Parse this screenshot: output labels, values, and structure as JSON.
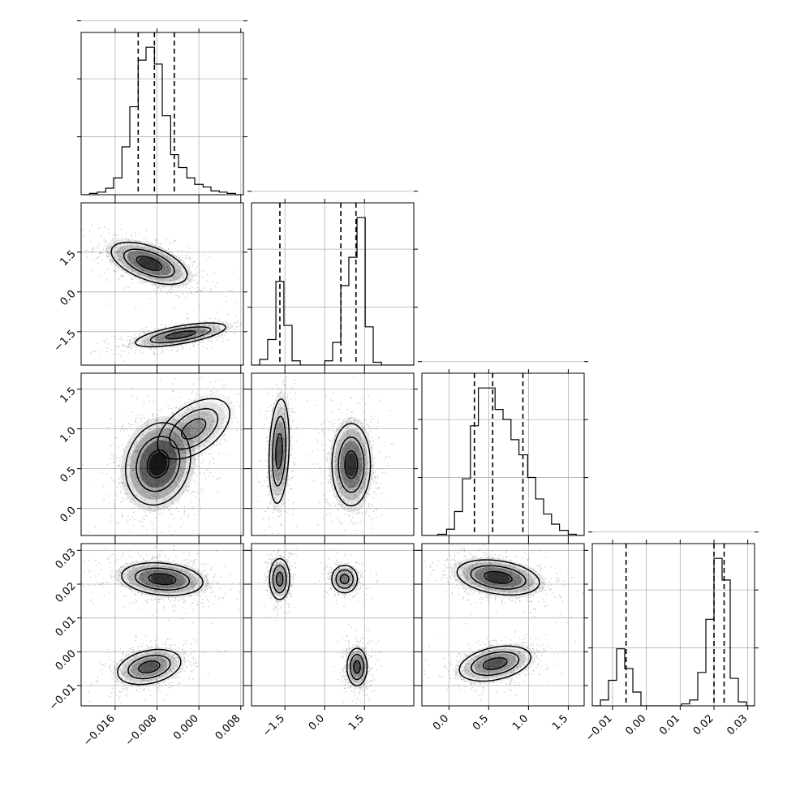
{
  "chart_data": {
    "type": "corner",
    "dimension_count": 4,
    "grid": true,
    "x_axis": [
      {
        "range": [
          -0.0225,
          0.0085
        ],
        "ticks": [
          -0.016,
          -0.008,
          0.0,
          0.008
        ],
        "labels": [
          "−0.016",
          "−0.008",
          "0.000",
          "0.008"
        ]
      },
      {
        "range": [
          -2.76,
          3.36
        ],
        "ticks": [
          -1.5,
          0.0,
          1.5
        ],
        "labels": [
          "−1.5",
          "0.0",
          "1.5"
        ]
      },
      {
        "range": [
          -0.34,
          1.7
        ],
        "ticks": [
          0.0,
          0.5,
          1.0,
          1.5
        ],
        "labels": [
          "0.0",
          "0.5",
          "1.0",
          "1.5"
        ]
      },
      {
        "range": [
          -0.016,
          0.032
        ],
        "ticks": [
          -0.01,
          0.0,
          0.01,
          0.02,
          0.03
        ],
        "labels": [
          "−0.01",
          "0.00",
          "0.01",
          "0.02",
          "0.03"
        ]
      }
    ],
    "y_axis": [
      null,
      {
        "range": [
          -2.76,
          3.36
        ],
        "ticks": [
          -1.5,
          0.0,
          1.5
        ],
        "labels": [
          "−1.5",
          "0.0",
          "1.5"
        ]
      },
      {
        "range": [
          -0.34,
          1.7
        ],
        "ticks": [
          0.0,
          0.5,
          1.0,
          1.5
        ],
        "labels": [
          "0.0",
          "0.5",
          "1.0",
          "1.5"
        ]
      },
      {
        "range": [
          -0.016,
          0.032
        ],
        "ticks": [
          -0.01,
          0.0,
          0.01,
          0.02,
          0.03
        ],
        "labels": [
          "−0.01",
          "0.00",
          "0.01",
          "0.02",
          "0.03"
        ]
      }
    ],
    "histograms": [
      {
        "bin_edges": [
          -0.0225,
          -0.0209,
          -0.0194,
          -0.0178,
          -0.0163,
          -0.0147,
          -0.0132,
          -0.0116,
          -0.0101,
          -0.0085,
          -0.007,
          -0.0054,
          -0.0039,
          -0.0023,
          -0.0008,
          0.0008,
          0.0023,
          0.0039,
          0.0054,
          0.007,
          0.0085
        ],
        "counts": [
          0,
          1,
          2,
          5,
          13,
          37,
          68,
          104,
          114,
          101,
          61,
          31,
          21,
          13,
          8,
          6,
          3,
          2,
          1,
          0
        ],
        "quantile_lines": [
          -0.0116,
          -0.0085,
          -0.0047
        ]
      },
      {
        "bin_edges": [
          -2.76,
          -2.45,
          -2.15,
          -1.84,
          -1.54,
          -1.23,
          -0.92,
          -0.62,
          -0.31,
          0.0,
          0.3,
          0.61,
          0.91,
          1.22,
          1.53,
          1.83,
          2.14,
          2.44,
          2.75,
          3.05,
          3.36
        ],
        "counts": [
          0,
          4,
          18,
          59,
          28,
          3,
          0,
          0,
          0,
          3,
          16,
          56,
          76,
          104,
          27,
          2,
          0,
          0,
          0,
          0
        ],
        "quantile_lines": [
          -1.69,
          0.61,
          1.18
        ]
      },
      {
        "bin_edges": [
          -0.34,
          -0.24,
          -0.14,
          -0.03,
          0.07,
          0.17,
          0.27,
          0.37,
          0.48,
          0.58,
          0.68,
          0.78,
          0.88,
          0.99,
          1.09,
          1.19,
          1.29,
          1.39,
          1.5,
          1.6,
          1.7
        ],
        "counts": [
          0,
          0,
          1,
          5,
          19,
          45,
          87,
          117,
          117,
          100,
          92,
          76,
          64,
          46,
          29,
          17,
          9,
          4,
          1,
          0
        ],
        "quantile_lines": [
          0.32,
          0.55,
          0.93
        ]
      },
      {
        "bin_edges": [
          -0.016,
          -0.0136,
          -0.0112,
          -0.0088,
          -0.0064,
          -0.004,
          -0.0016,
          0.0008,
          0.0032,
          0.0056,
          0.008,
          0.0104,
          0.0128,
          0.0152,
          0.0176,
          0.02,
          0.0224,
          0.0248,
          0.0272,
          0.0296,
          0.032
        ],
        "counts": [
          0,
          3,
          13,
          29,
          19,
          7,
          0,
          0,
          0,
          0,
          0,
          1,
          3,
          17,
          44,
          75,
          64,
          14,
          2,
          0
        ],
        "quantile_lines": [
          -0.006,
          0.02,
          0.023
        ]
      }
    ],
    "density_panels": [
      {
        "x_dim": 0,
        "y_dim": 1,
        "clusters": [
          {
            "center": [
              -0.0095,
              1.08
            ],
            "spread": [
              0.0042,
              0.46
            ],
            "corr": -0.55,
            "weight": 0.57
          },
          {
            "center": [
              -0.0035,
              -1.62
            ],
            "spread": [
              0.005,
              0.26
            ],
            "corr": 0.65,
            "weight": 0.43
          }
        ]
      },
      {
        "x_dim": 0,
        "y_dim": 2,
        "clusters": [
          {
            "center": [
              -0.0078,
              0.56
            ],
            "spread": [
              0.0036,
              0.3
            ],
            "corr": 0.15,
            "weight": 0.75
          },
          {
            "center": [
              -0.001,
              1.0
            ],
            "spread": [
              0.004,
              0.22
            ],
            "corr": 0.5,
            "weight": 0.25
          }
        ]
      },
      {
        "x_dim": 0,
        "y_dim": 3,
        "clusters": [
          {
            "center": [
              -0.007,
              0.0215
            ],
            "spread": [
              0.0045,
              0.0028
            ],
            "corr": -0.2,
            "weight": 0.58
          },
          {
            "center": [
              -0.0095,
              -0.0045
            ],
            "spread": [
              0.0035,
              0.003
            ],
            "corr": 0.3,
            "weight": 0.42
          }
        ]
      },
      {
        "x_dim": 1,
        "y_dim": 2,
        "clusters": [
          {
            "center": [
              -1.72,
              0.72
            ],
            "spread": [
              0.22,
              0.38
            ],
            "corr": 0.2,
            "weight": 0.42
          },
          {
            "center": [
              1.0,
              0.55
            ],
            "spread": [
              0.42,
              0.3
            ],
            "corr": 0.0,
            "weight": 0.58
          }
        ]
      },
      {
        "x_dim": 1,
        "y_dim": 3,
        "clusters": [
          {
            "center": [
              -1.7,
              0.0215
            ],
            "spread": [
              0.22,
              0.0035
            ],
            "corr": 0.0,
            "weight": 0.3
          },
          {
            "center": [
              0.75,
              0.0215
            ],
            "spread": [
              0.3,
              0.0022
            ],
            "corr": 0.0,
            "weight": 0.28
          },
          {
            "center": [
              1.22,
              -0.0045
            ],
            "spread": [
              0.22,
              0.0032
            ],
            "corr": 0.0,
            "weight": 0.42
          }
        ]
      },
      {
        "x_dim": 2,
        "y_dim": 3,
        "clusters": [
          {
            "center": [
              0.62,
              0.022
            ],
            "spread": [
              0.3,
              0.003
            ],
            "corr": -0.3,
            "weight": 0.58
          },
          {
            "center": [
              0.58,
              -0.0035
            ],
            "spread": [
              0.26,
              0.003
            ],
            "corr": 0.35,
            "weight": 0.42
          }
        ]
      }
    ],
    "contour_levels_sigma": [
      0.5,
      1.0,
      1.5
    ]
  }
}
